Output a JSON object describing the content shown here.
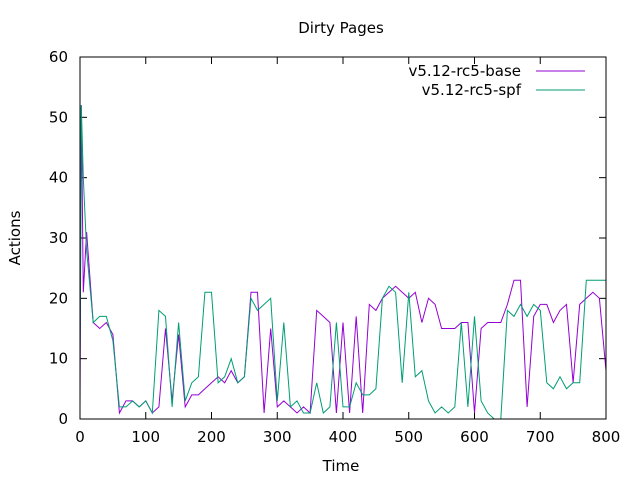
{
  "chart_data": {
    "type": "line",
    "title": "Dirty Pages",
    "xlabel": "Time",
    "ylabel": "Actions",
    "xlim": [
      0,
      800
    ],
    "ylim": [
      0,
      60
    ],
    "xticks": [
      0,
      100,
      200,
      300,
      400,
      500,
      600,
      700,
      800
    ],
    "yticks": [
      0,
      10,
      20,
      30,
      40,
      50,
      60
    ],
    "grid": false,
    "legend_position": "top-right",
    "series": [
      {
        "name": "v5.12-rc5-base",
        "color": "#9400d3",
        "x": [
          0,
          2,
          5,
          10,
          20,
          30,
          40,
          50,
          60,
          70,
          80,
          90,
          100,
          110,
          120,
          130,
          140,
          150,
          160,
          170,
          180,
          190,
          200,
          210,
          220,
          230,
          240,
          250,
          260,
          270,
          280,
          290,
          300,
          310,
          320,
          330,
          340,
          350,
          360,
          370,
          380,
          390,
          400,
          410,
          420,
          430,
          440,
          450,
          460,
          470,
          480,
          490,
          500,
          510,
          520,
          530,
          540,
          550,
          560,
          570,
          580,
          590,
          600,
          610,
          620,
          630,
          640,
          650,
          660,
          670,
          680,
          690,
          700,
          710,
          720,
          730,
          740,
          750,
          760,
          770,
          780,
          790,
          800
        ],
        "values": [
          2,
          52,
          21,
          31,
          16,
          15,
          16,
          14,
          1,
          3,
          3,
          2,
          3,
          1,
          2,
          15,
          3,
          14,
          2,
          4,
          4,
          5,
          6,
          7,
          6,
          8,
          6,
          7,
          21,
          21,
          1,
          15,
          2,
          3,
          2,
          1,
          2,
          1,
          18,
          17,
          16,
          1,
          16,
          1,
          17,
          1,
          19,
          18,
          20,
          21,
          22,
          21,
          20,
          21,
          16,
          20,
          19,
          15,
          15,
          15,
          16,
          16,
          1,
          15,
          16,
          16,
          16,
          19,
          23,
          23,
          2,
          17,
          19,
          19,
          16,
          18,
          19,
          6,
          19,
          20,
          21,
          20,
          8
        ]
      },
      {
        "name": "v5.12-rc5-spf",
        "color": "#009e73",
        "x": [
          0,
          2,
          5,
          10,
          20,
          30,
          40,
          50,
          60,
          70,
          80,
          90,
          100,
          110,
          120,
          130,
          140,
          150,
          160,
          170,
          180,
          190,
          200,
          210,
          220,
          230,
          240,
          250,
          260,
          270,
          280,
          290,
          300,
          310,
          320,
          330,
          340,
          350,
          360,
          370,
          380,
          390,
          400,
          410,
          420,
          430,
          440,
          450,
          460,
          470,
          480,
          490,
          500,
          510,
          520,
          530,
          540,
          550,
          560,
          570,
          580,
          590,
          600,
          610,
          620,
          630,
          640,
          650,
          660,
          670,
          680,
          690,
          700,
          710,
          720,
          730,
          740,
          750,
          760,
          770,
          780,
          790,
          800
        ],
        "values": [
          9,
          52,
          40,
          28,
          16,
          17,
          17,
          13,
          2,
          2,
          3,
          2,
          3,
          1,
          18,
          17,
          2,
          16,
          3,
          6,
          7,
          21,
          21,
          6,
          7,
          10,
          6,
          7,
          20,
          18,
          19,
          20,
          3,
          16,
          2,
          3,
          1,
          1,
          6,
          1,
          2,
          16,
          2,
          2,
          6,
          4,
          4,
          5,
          20,
          22,
          21,
          6,
          21,
          7,
          8,
          3,
          1,
          2,
          1,
          2,
          16,
          2,
          17,
          3,
          1,
          0,
          0,
          18,
          17,
          19,
          17,
          19,
          18,
          6,
          5,
          7,
          5,
          6,
          6,
          23,
          23,
          23,
          23
        ]
      }
    ]
  }
}
